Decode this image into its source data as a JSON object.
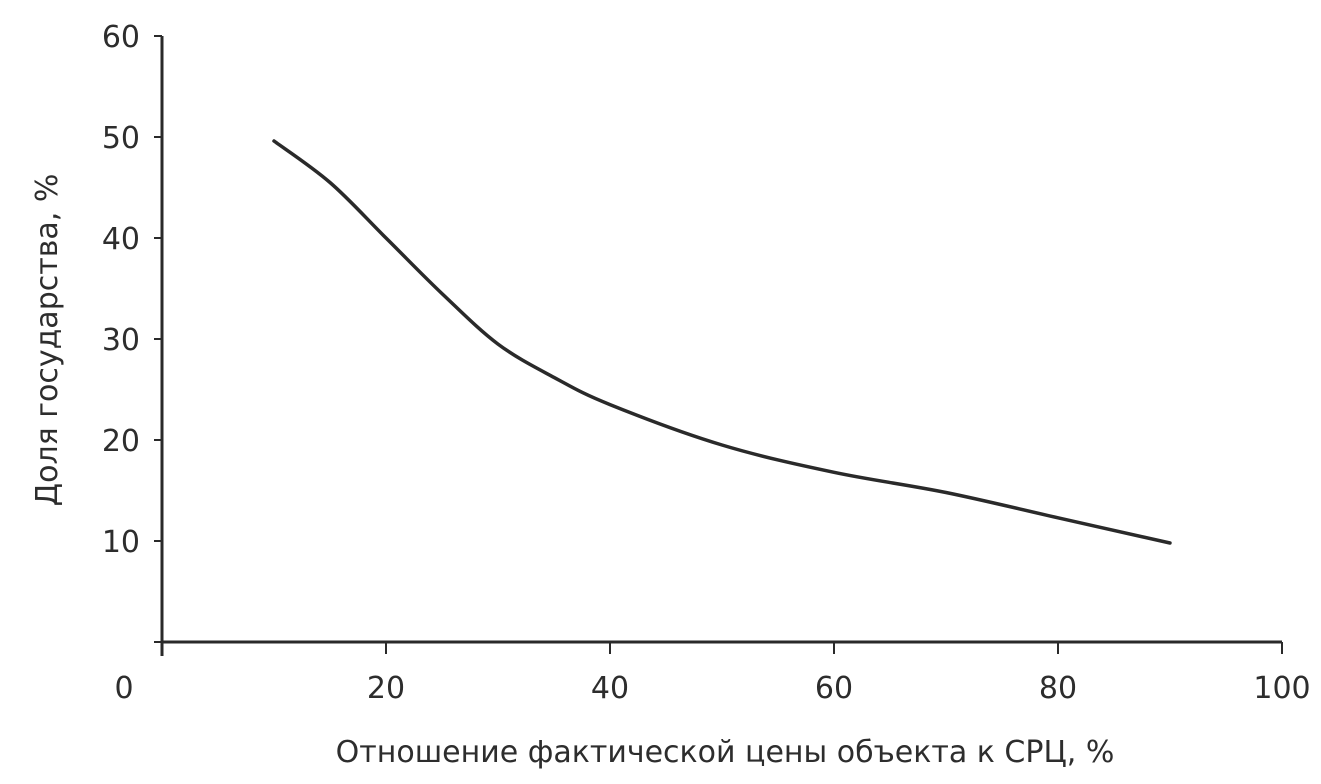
{
  "chart_data": {
    "type": "line",
    "title": "",
    "xlabel": "Отношение фактической цены объекта к СРЦ, %",
    "ylabel": "Доля государства, %",
    "xlim": [
      0,
      100
    ],
    "ylim": [
      0,
      60
    ],
    "x_ticks": [
      20,
      40,
      60,
      80,
      100
    ],
    "y_ticks": [
      10,
      20,
      30,
      40,
      50,
      60
    ],
    "origin_label": "0",
    "grid": false,
    "legend": "none",
    "series": [
      {
        "x": [
          10,
          15,
          20,
          25,
          30,
          35,
          40,
          50,
          60,
          70,
          80,
          90
        ],
        "y": [
          49.6,
          45.5,
          40,
          34.5,
          29.5,
          26.2,
          23.5,
          19.5,
          16.8,
          14.8,
          12.3,
          9.8
        ]
      }
    ],
    "colors": {
      "line": "#2a2a2a",
      "axes": "#2a2a2a",
      "text": "#2d2d2d"
    }
  }
}
